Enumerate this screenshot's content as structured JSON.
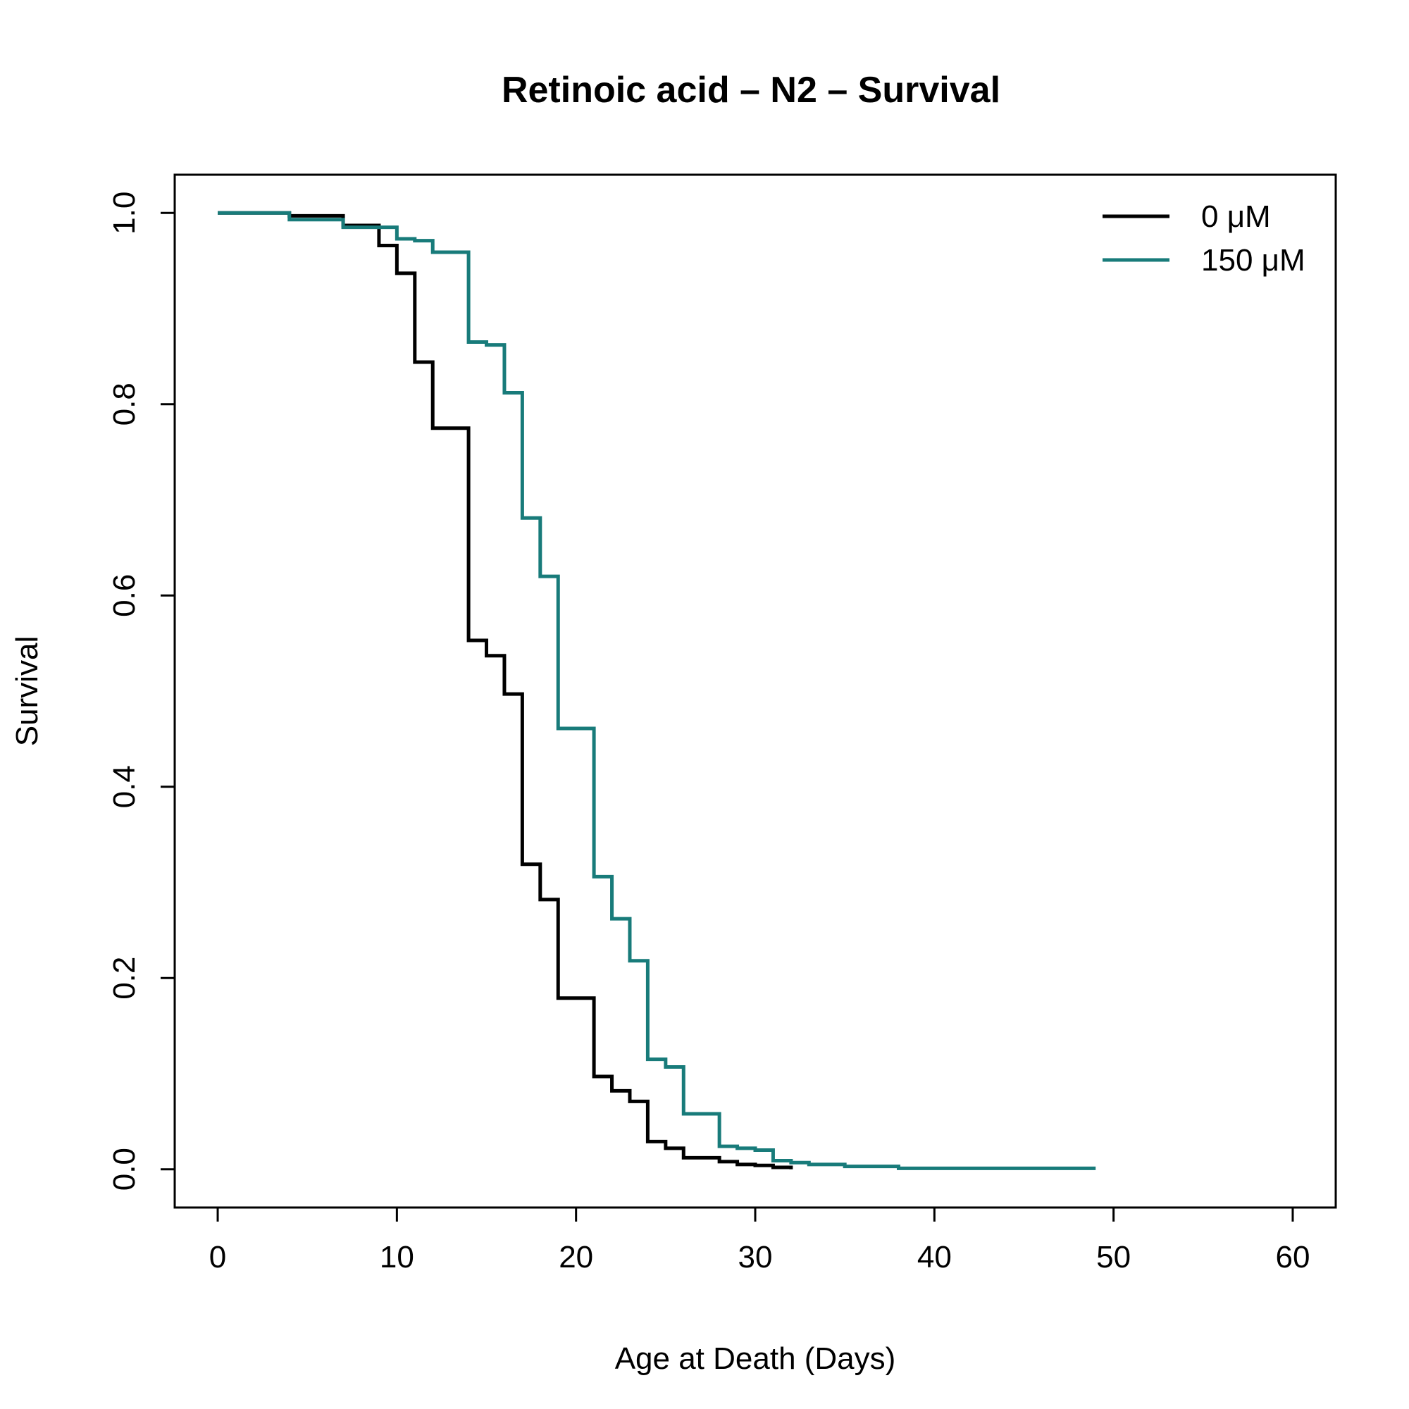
{
  "chart_data": {
    "type": "line",
    "step": true,
    "title": "Retinoic acid – N2 – Survival",
    "xlabel": "Age at Death (Days)",
    "ylabel": "Survival",
    "xlim": [
      -2.4,
      62.4
    ],
    "ylim": [
      -0.04,
      1.04
    ],
    "xticks": [
      0,
      10,
      20,
      30,
      40,
      50,
      60
    ],
    "xtick_labels": [
      "0",
      "10",
      "20",
      "30",
      "40",
      "50",
      "60"
    ],
    "yticks": [
      0.0,
      0.2,
      0.4,
      0.6,
      0.8,
      1.0
    ],
    "ytick_labels": [
      "0.0",
      "0.2",
      "0.4",
      "0.6",
      "0.8",
      "1.0"
    ],
    "grid": false,
    "legend_position": "top-right",
    "series": [
      {
        "name": "0 μM",
        "color": "#000000",
        "x": [
          0,
          4,
          7,
          9,
          10,
          11,
          12,
          14,
          15,
          16,
          17,
          18,
          19,
          21,
          22,
          23,
          24,
          25,
          26,
          28,
          29,
          30,
          31,
          32
        ],
        "y": [
          1.0,
          0.997,
          0.987,
          0.966,
          0.937,
          0.844,
          0.775,
          0.553,
          0.537,
          0.497,
          0.319,
          0.282,
          0.179,
          0.097,
          0.082,
          0.071,
          0.029,
          0.022,
          0.012,
          0.008,
          0.005,
          0.004,
          0.002,
          0.0
        ]
      },
      {
        "name": "150 μM",
        "color": "#187B7A",
        "x": [
          0,
          4,
          7,
          10,
          11,
          12,
          14,
          15,
          16,
          17,
          18,
          19,
          21,
          22,
          23,
          24,
          25,
          26,
          28,
          29,
          30,
          31,
          32,
          33,
          35,
          38,
          49
        ],
        "y": [
          1.0,
          0.993,
          0.985,
          0.973,
          0.971,
          0.959,
          0.865,
          0.862,
          0.812,
          0.681,
          0.62,
          0.461,
          0.306,
          0.262,
          0.218,
          0.115,
          0.107,
          0.058,
          0.024,
          0.022,
          0.02,
          0.009,
          0.007,
          0.005,
          0.003,
          0.001,
          0.001
        ]
      }
    ]
  }
}
